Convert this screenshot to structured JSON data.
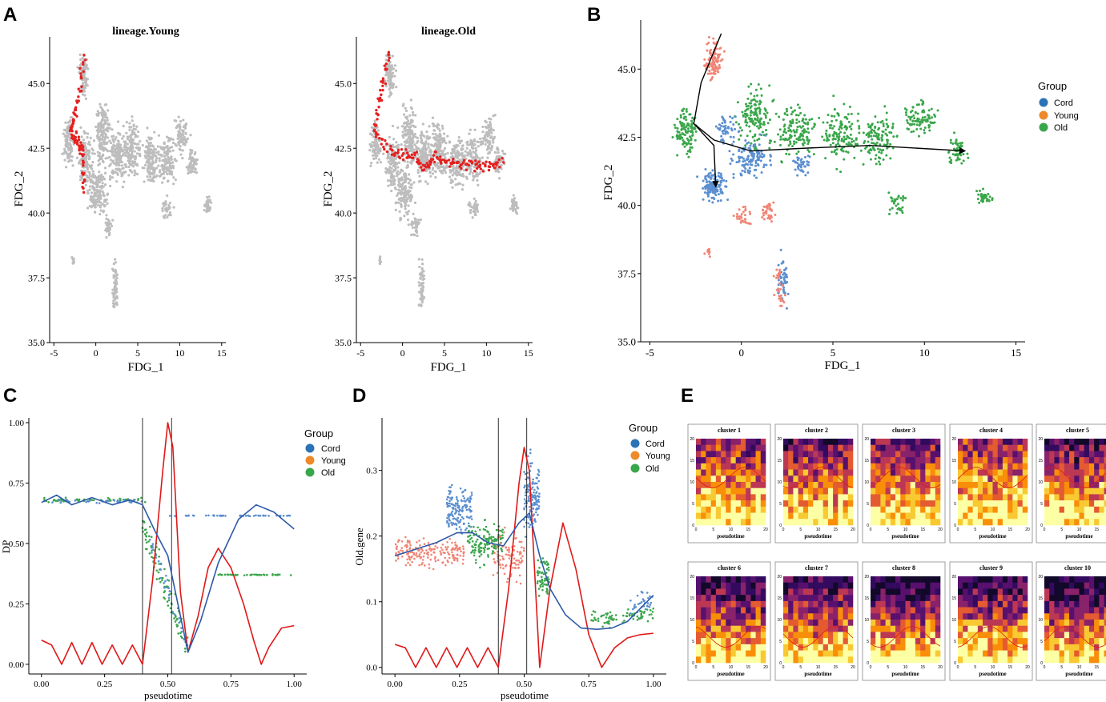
{
  "panel_letters": [
    "A",
    "B",
    "C",
    "D",
    "E"
  ],
  "colors": {
    "cord": "#5b8fd0",
    "cord_legend": "#2b73b6",
    "young": "#ee8a2a",
    "old": "#3aa64a",
    "young_scatter": "#f08576",
    "highlight": "#e52020",
    "grey": "#bdbdbd",
    "curve_red": "#e01818",
    "curve_blue": "#2f5aa8"
  },
  "chart_data": [
    {
      "id": "A1",
      "type": "scatter",
      "title": "lineage.Young",
      "xlabel": "FDG_1",
      "ylabel": "FDG_2",
      "xlim": [
        -5.5,
        15.5
      ],
      "ylim": [
        35,
        46.8
      ],
      "xticks": [
        "-5",
        "0",
        "5",
        "10",
        "15"
      ],
      "yticks": [
        "35.0",
        "37.5",
        "40.0",
        "42.5",
        "45.0"
      ],
      "highlight_path": [
        [
          -1.4,
          46.0
        ],
        [
          -2.3,
          44.0
        ],
        [
          -3.0,
          43.2
        ],
        [
          -2.2,
          42.8
        ],
        [
          -1.6,
          42.4
        ],
        [
          -1.4,
          40.8
        ]
      ]
    },
    {
      "id": "A2",
      "type": "scatter",
      "title": "lineage.Old",
      "xlabel": "FDG_1",
      "ylabel": "FDG_2",
      "xlim": [
        -5.5,
        15.5
      ],
      "ylim": [
        35,
        46.8
      ],
      "xticks": [
        "-5",
        "0",
        "5",
        "10",
        "15"
      ],
      "yticks": [
        "35.0",
        "37.5",
        "40.0",
        "42.5",
        "45.0"
      ],
      "highlight_path": [
        [
          -1.5,
          46.2
        ],
        [
          -2.5,
          44.8
        ],
        [
          -3.4,
          43.1
        ],
        [
          -1.0,
          42.3
        ],
        [
          1.0,
          42.3
        ],
        [
          2.5,
          41.7
        ],
        [
          4.0,
          42.2
        ],
        [
          6.0,
          41.9
        ],
        [
          8.0,
          41.9
        ],
        [
          10.0,
          41.8
        ],
        [
          12.0,
          42.0
        ]
      ]
    },
    {
      "id": "B",
      "type": "scatter",
      "xlabel": "FDG_1",
      "ylabel": "FDG_2",
      "xlim": [
        -5.5,
        15.5
      ],
      "ylim": [
        35,
        46.8
      ],
      "xticks": [
        "-5",
        "0",
        "5",
        "10",
        "15"
      ],
      "yticks": [
        "35.0",
        "37.5",
        "40.0",
        "42.5",
        "45.0"
      ],
      "legend_title": "Group",
      "legend": [
        "Cord",
        "Young",
        "Old"
      ],
      "trajectory": [
        [
          -1.1,
          46.3
        ],
        [
          -2.2,
          44.5
        ],
        [
          -2.6,
          43.0
        ],
        [
          -1.5,
          42.4
        ],
        [
          0.5,
          42.0
        ],
        [
          3.5,
          42.1
        ],
        [
          7.0,
          42.2
        ],
        [
          12.2,
          42.0
        ]
      ],
      "trajectory_branch": [
        [
          -2.6,
          43.0
        ],
        [
          -1.5,
          42.2
        ],
        [
          -1.4,
          40.7
        ]
      ]
    },
    {
      "id": "C",
      "type": "line",
      "xlabel": "pseudotime",
      "ylabel": "DP",
      "xlim": [
        -0.05,
        1.05
      ],
      "ylim": [
        -0.04,
        1.02
      ],
      "xticks": [
        "0.00",
        "0.25",
        "0.50",
        "0.75",
        "1.00"
      ],
      "yticks": [
        "0.00",
        "0.25",
        "0.50",
        "0.75",
        "1.00"
      ],
      "vlines": [
        0.4,
        0.515
      ],
      "legend_title": "Group",
      "legend": [
        "Cord",
        "Young",
        "Old"
      ],
      "series": [
        {
          "name": "peak",
          "x": [
            0.0,
            0.04,
            0.08,
            0.12,
            0.16,
            0.2,
            0.24,
            0.28,
            0.32,
            0.36,
            0.4,
            0.44,
            0.48,
            0.5,
            0.52,
            0.55,
            0.58,
            0.62,
            0.66,
            0.7,
            0.75,
            0.8,
            0.84,
            0.87,
            0.9,
            0.95,
            1.0
          ],
          "y": [
            0.1,
            0.08,
            0.0,
            0.09,
            0.0,
            0.09,
            0.0,
            0.08,
            0.0,
            0.08,
            0.0,
            0.35,
            0.8,
            1.0,
            0.9,
            0.3,
            0.05,
            0.2,
            0.4,
            0.48,
            0.4,
            0.25,
            0.1,
            0.0,
            0.07,
            0.15,
            0.16
          ]
        },
        {
          "name": "smooth",
          "x": [
            0.0,
            0.06,
            0.12,
            0.2,
            0.28,
            0.35,
            0.4,
            0.45,
            0.5,
            0.54,
            0.58,
            0.63,
            0.7,
            0.78,
            0.85,
            0.92,
            1.0
          ],
          "y": [
            0.67,
            0.7,
            0.66,
            0.69,
            0.66,
            0.68,
            0.66,
            0.55,
            0.45,
            0.25,
            0.05,
            0.18,
            0.42,
            0.6,
            0.66,
            0.63,
            0.56
          ]
        }
      ]
    },
    {
      "id": "D",
      "type": "line",
      "xlabel": "pseudotime",
      "ylabel": "Old.gene",
      "xlim": [
        -0.05,
        1.05
      ],
      "ylim": [
        -0.01,
        0.38
      ],
      "xticks": [
        "0.00",
        "0.25",
        "0.50",
        "0.75",
        "1.00"
      ],
      "yticks": [
        "0.0",
        "0.1",
        "0.2",
        "0.3"
      ],
      "vlines": [
        0.4,
        0.51
      ],
      "legend_title": "Group",
      "legend": [
        "Cord",
        "Young",
        "Old"
      ],
      "series": [
        {
          "name": "peak",
          "x": [
            0.0,
            0.04,
            0.08,
            0.12,
            0.16,
            0.2,
            0.24,
            0.28,
            0.32,
            0.36,
            0.4,
            0.44,
            0.48,
            0.5,
            0.52,
            0.56,
            0.6,
            0.65,
            0.7,
            0.75,
            0.8,
            0.85,
            0.9,
            0.95,
            1.0
          ],
          "y": [
            0.035,
            0.03,
            0.0,
            0.03,
            0.0,
            0.03,
            0.0,
            0.03,
            0.0,
            0.03,
            0.0,
            0.12,
            0.28,
            0.335,
            0.3,
            0.0,
            0.12,
            0.22,
            0.15,
            0.05,
            0.0,
            0.03,
            0.045,
            0.05,
            0.052
          ]
        },
        {
          "name": "smooth",
          "x": [
            0.0,
            0.08,
            0.16,
            0.24,
            0.3,
            0.36,
            0.42,
            0.48,
            0.52,
            0.56,
            0.6,
            0.66,
            0.72,
            0.78,
            0.84,
            0.9,
            0.95,
            1.0
          ],
          "y": [
            0.17,
            0.18,
            0.19,
            0.205,
            0.205,
            0.19,
            0.185,
            0.22,
            0.235,
            0.17,
            0.12,
            0.08,
            0.06,
            0.058,
            0.06,
            0.07,
            0.09,
            0.11
          ]
        }
      ]
    },
    {
      "id": "E",
      "type": "heatmap",
      "xlabel": "pseudotime",
      "xticks": [
        "0",
        "5",
        "10",
        "15",
        "20"
      ],
      "yticks": [
        "0",
        "5",
        "10",
        "15",
        "20"
      ],
      "panels": [
        "cluster 1",
        "cluster 2",
        "cluster 3",
        "cluster 4",
        "cluster 5",
        "cluster 6",
        "cluster 7",
        "cluster 8",
        "cluster 9",
        "cluster 10"
      ]
    }
  ]
}
